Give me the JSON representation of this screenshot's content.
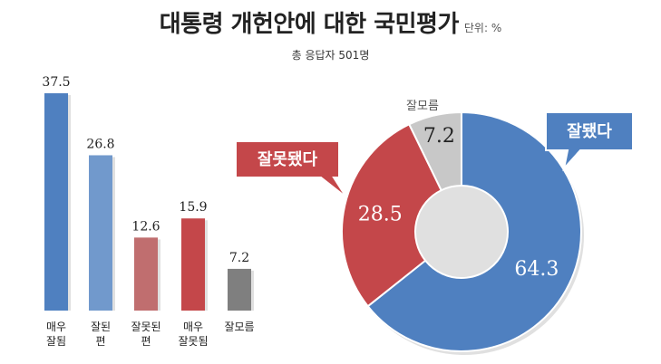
{
  "header": {
    "title": "대통령 개헌안에 대한 국민평가",
    "unit": "단위: %",
    "respondents": "총 응답자 501명"
  },
  "colors": {
    "blue": "#4f80c0",
    "blue_light": "#7199cc",
    "red_light": "#c06e6f",
    "red": "#c4474a",
    "gray": "#7f7f7f",
    "gray_light": "#c8c8c8"
  },
  "chart_data": [
    {
      "type": "bar",
      "categories": [
        [
          "매우",
          "잘됨"
        ],
        [
          "잘된",
          "편"
        ],
        [
          "잘못된",
          "편"
        ],
        [
          "매우",
          "잘못됨"
        ],
        [
          "잘모름"
        ]
      ],
      "values": [
        37.5,
        26.8,
        12.6,
        15.9,
        7.2
      ],
      "value_labels": [
        "37.5",
        "26.8",
        "12.6",
        "15.9",
        "7.2"
      ],
      "colors": [
        "blue",
        "blue_light",
        "red_light",
        "red",
        "gray"
      ],
      "ylim": [
        0,
        37.5
      ]
    },
    {
      "type": "pie",
      "labels": [
        "잘됐다",
        "잘못됐다",
        "잘모름"
      ],
      "values": [
        64.3,
        28.5,
        7.2
      ],
      "value_labels": [
        "64.3",
        "28.5",
        "7.2"
      ],
      "colors": [
        "blue",
        "red",
        "gray_light"
      ],
      "donut": true
    }
  ]
}
